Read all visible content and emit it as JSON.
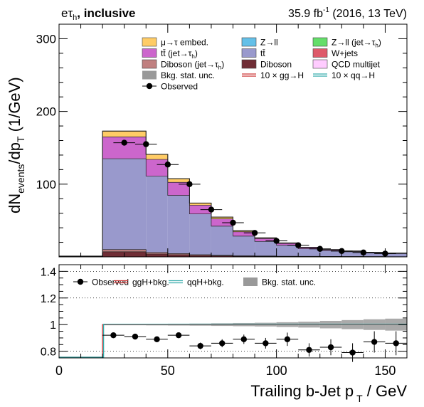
{
  "header": {
    "channel_base": "eτ",
    "channel_sub": "h",
    "channel_suffix": ", inclusive",
    "lumi_value": "35.9 fb",
    "lumi_sup": "-1",
    "lumi_rest": " (2016, 13 TeV)"
  },
  "axes": {
    "y_main_d": "dN",
    "y_main_events": "events",
    "y_main_dp": "/dp",
    "y_main_t": "T",
    "y_main_unit": "  (1/GeV)",
    "x_main": "Trailing b-Jet p",
    "x_sub": "T",
    "x_unit": " / GeV"
  },
  "legend_main": [
    {
      "id": "emb",
      "label": "μ→τ embed.",
      "color": "#ffcc66",
      "kind": "box"
    },
    {
      "id": "zll",
      "label": "Z→ll",
      "color": "#64c0e8",
      "kind": "box"
    },
    {
      "id": "zlj",
      "label": "Z→ll (jet→τh)",
      "color": "#64de6a",
      "kind": "box"
    },
    {
      "id": "ttj",
      "label": "tt̄ (jet→τh)",
      "color": "#cc66cc",
      "kind": "box"
    },
    {
      "id": "tt",
      "label": "tt̄",
      "color": "#9999cc",
      "kind": "box"
    },
    {
      "id": "wj",
      "label": "W+jets",
      "color": "#de5a6a",
      "kind": "box"
    },
    {
      "id": "dbj",
      "label": "Diboson (jet→τh)",
      "color": "#c08080",
      "kind": "box"
    },
    {
      "id": "db",
      "label": "Diboson",
      "color": "#6f2d35",
      "kind": "box"
    },
    {
      "id": "qcd",
      "label": "QCD multijet",
      "color": "#ffccff",
      "kind": "box"
    },
    {
      "id": "unc",
      "label": "Bkg. stat. unc.",
      "color": "#999999",
      "kind": "box"
    },
    {
      "id": "ggh",
      "label": "10 × gg→H",
      "color": "#cc3333",
      "kind": "line2"
    },
    {
      "id": "qqh",
      "label": "10 × qq→H",
      "color": "#33aaaa",
      "kind": "line2"
    },
    {
      "id": "obs",
      "label": "Observed",
      "color": "#000000",
      "kind": "marker"
    }
  ],
  "legend_ratio": [
    {
      "id": "obs",
      "label": "Observed",
      "color": "#000000",
      "kind": "marker"
    },
    {
      "id": "gghb",
      "label": "ggH+bkg.",
      "color": "#cc3333",
      "kind": "line2"
    },
    {
      "id": "qqhb",
      "label": "qqH+bkg.",
      "color": "#33aaaa",
      "kind": "line2"
    },
    {
      "id": "uncr",
      "label": "Bkg. stat. unc.",
      "color": "#999999",
      "kind": "box"
    }
  ],
  "chart_data": [
    {
      "type": "bar",
      "subtype": "stacked-histogram",
      "xlim": [
        0,
        160
      ],
      "ylim": [
        0,
        320
      ],
      "yticks": [
        100,
        200,
        300
      ],
      "xticks": [
        0,
        50,
        100,
        150
      ],
      "bin_edges": [
        0,
        20,
        40,
        50,
        60,
        70,
        80,
        90,
        100,
        110,
        120,
        130,
        140,
        150,
        160
      ],
      "series": [
        {
          "name": "Diboson",
          "color": "#6f2d35",
          "values": [
            0.2,
            7,
            4,
            3,
            2,
            1.5,
            1,
            0.8,
            0.6,
            0.5,
            0.4,
            0.3,
            0.3,
            0.2
          ]
        },
        {
          "name": "Diboson (jet→τh)",
          "color": "#c08080",
          "values": [
            0.1,
            3,
            2,
            1.5,
            1,
            0.7,
            0.5,
            0.4,
            0.3,
            0.2,
            0.2,
            0.2,
            0.1,
            0.1
          ]
        },
        {
          "name": "tt̄",
          "color": "#9999cc",
          "values": [
            0.5,
            125,
            105,
            80,
            56,
            40,
            27,
            20,
            15,
            10.5,
            8,
            6.5,
            5,
            4.2
          ]
        },
        {
          "name": "tt̄ (jet→τh)",
          "color": "#cc66cc",
          "values": [
            0.2,
            30,
            23,
            18,
            12,
            10,
            6,
            4,
            2.5,
            1.5,
            1,
            0.8,
            0.6,
            0.5
          ]
        },
        {
          "name": "μ→τ embed.",
          "color": "#ffcc66",
          "values": [
            0.1,
            8,
            7,
            5,
            3,
            2.5,
            1.5,
            1,
            0.8,
            0.5,
            0.4,
            0.3,
            0.2,
            0.2
          ]
        }
      ],
      "observed": {
        "x": [
          30,
          40,
          50,
          60,
          70,
          80,
          90,
          100,
          110,
          120,
          130,
          140,
          150
        ],
        "y": [
          157,
          155,
          127,
          100,
          65,
          47,
          33,
          22,
          16,
          11,
          8,
          6,
          4.5
        ],
        "xerr": 5
      }
    },
    {
      "type": "scatter",
      "subtype": "ratio",
      "xlim": [
        0,
        160
      ],
      "ylim": [
        0.75,
        1.45
      ],
      "yticks": [
        0.8,
        1,
        1.2,
        1.4
      ],
      "ytick_labels": [
        "0.8",
        "1",
        "1.2",
        "1.4"
      ],
      "xticks": [
        0,
        50,
        100,
        150
      ],
      "gridlines_y": [
        0.8,
        1.2,
        1.4
      ],
      "observed": {
        "x": [
          25,
          35,
          45,
          55,
          65,
          75,
          85,
          95,
          105,
          115,
          125,
          135,
          145,
          155
        ],
        "y": [
          0.92,
          0.91,
          0.89,
          0.92,
          0.84,
          0.86,
          0.89,
          0.86,
          0.89,
          0.81,
          0.83,
          0.79,
          0.87,
          0.86
        ],
        "yerr": [
          0.015,
          0.015,
          0.02,
          0.02,
          0.025,
          0.03,
          0.035,
          0.04,
          0.05,
          0.05,
          0.06,
          0.07,
          0.08,
          0.09
        ],
        "xerr": 5
      },
      "band": {
        "bin_edges": [
          20,
          30,
          40,
          50,
          60,
          70,
          80,
          90,
          100,
          110,
          120,
          130,
          140,
          150,
          160
        ],
        "halfwidth": [
          0.005,
          0.005,
          0.006,
          0.007,
          0.008,
          0.01,
          0.012,
          0.014,
          0.018,
          0.022,
          0.028,
          0.034,
          0.04,
          0.045
        ]
      },
      "signal_lines": [
        {
          "name": "ggH+bkg.",
          "color": "#cc3333",
          "value": 1.0,
          "x_start": 20
        },
        {
          "name": "qqH+bkg.",
          "color": "#33aaaa",
          "value": 1.003,
          "x_start": 20
        }
      ]
    }
  ]
}
